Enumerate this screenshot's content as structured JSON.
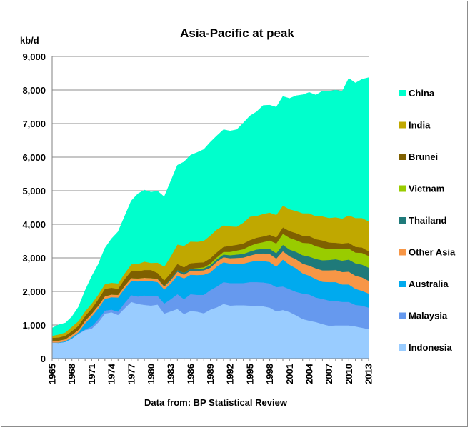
{
  "chart_data": {
    "type": "area",
    "stacked": true,
    "title": "Asia-Pacific at peak",
    "ylabel": "kb/d",
    "xlabel": "",
    "source_note": "Data from: BP Statistical Review",
    "ylim": [
      0,
      9000
    ],
    "yticks": [
      "0",
      "1,000",
      "2,000",
      "3,000",
      "4,000",
      "5,000",
      "6,000",
      "7,000",
      "8,000",
      "9,000"
    ],
    "xtick_labels": [
      "1965",
      "1968",
      "1971",
      "1974",
      "1977",
      "1980",
      "1983",
      "1986",
      "1989",
      "1992",
      "1995",
      "1998",
      "2001",
      "2004",
      "2007",
      "2010",
      "2013"
    ],
    "grid": "horizontal",
    "legend_position": "right",
    "x": [
      1965,
      1966,
      1967,
      1968,
      1969,
      1970,
      1971,
      1972,
      1973,
      1974,
      1975,
      1976,
      1977,
      1978,
      1979,
      1980,
      1981,
      1982,
      1983,
      1984,
      1985,
      1986,
      1987,
      1988,
      1989,
      1990,
      1991,
      1992,
      1993,
      1994,
      1995,
      1996,
      1997,
      1998,
      1999,
      2000,
      2001,
      2002,
      2003,
      2004,
      2005,
      2006,
      2007,
      2008,
      2009,
      2010,
      2011,
      2012,
      2013
    ],
    "series": [
      {
        "name": "Indonesia",
        "color": "#99ccff",
        "values": [
          480,
          470,
          500,
          600,
          740,
          850,
          890,
          1080,
          1340,
          1380,
          1300,
          1500,
          1690,
          1630,
          1600,
          1580,
          1610,
          1340,
          1410,
          1480,
          1330,
          1420,
          1400,
          1350,
          1460,
          1530,
          1630,
          1580,
          1590,
          1590,
          1580,
          1580,
          1560,
          1520,
          1410,
          1450,
          1390,
          1290,
          1180,
          1130,
          1090,
          1030,
          980,
          990,
          990,
          990,
          960,
          920,
          880
        ]
      },
      {
        "name": "Malaysia",
        "color": "#6699ee",
        "values": [
          0,
          0,
          0,
          0,
          10,
          20,
          70,
          90,
          90,
          80,
          100,
          160,
          200,
          220,
          280,
          280,
          260,
          300,
          360,
          440,
          440,
          500,
          500,
          550,
          580,
          620,
          650,
          670,
          660,
          660,
          700,
          700,
          710,
          720,
          720,
          700,
          680,
          700,
          760,
          780,
          730,
          750,
          750,
          730,
          700,
          700,
          640,
          660,
          640
        ]
      },
      {
        "name": "Australia",
        "color": "#00aaee",
        "values": [
          0,
          10,
          20,
          40,
          40,
          180,
          300,
          330,
          350,
          370,
          420,
          430,
          420,
          450,
          440,
          450,
          410,
          420,
          470,
          560,
          620,
          580,
          590,
          600,
          530,
          600,
          590,
          580,
          580,
          580,
          600,
          640,
          640,
          640,
          610,
          800,
          730,
          700,
          600,
          560,
          550,
          510,
          550,
          560,
          520,
          520,
          480,
          440,
          420
        ]
      },
      {
        "name": "Other Asia",
        "color": "#f79646",
        "values": [
          60,
          60,
          60,
          70,
          70,
          80,
          80,
          80,
          80,
          80,
          80,
          80,
          90,
          90,
          90,
          90,
          90,
          90,
          100,
          110,
          110,
          120,
          130,
          130,
          140,
          140,
          150,
          160,
          170,
          180,
          190,
          200,
          220,
          240,
          240,
          250,
          250,
          270,
          290,
          300,
          320,
          340,
          350,
          360,
          370,
          380,
          390,
          400,
          380
        ]
      },
      {
        "name": "Thailand",
        "color": "#1f7a7a",
        "values": [
          0,
          0,
          0,
          0,
          0,
          0,
          0,
          0,
          0,
          0,
          0,
          0,
          0,
          0,
          0,
          0,
          10,
          20,
          40,
          50,
          60,
          60,
          60,
          60,
          70,
          70,
          80,
          90,
          100,
          110,
          120,
          130,
          140,
          150,
          160,
          190,
          200,
          220,
          250,
          270,
          280,
          300,
          310,
          320,
          340,
          360,
          370,
          380,
          390
        ]
      },
      {
        "name": "Vietnam",
        "color": "#99cc00",
        "values": [
          0,
          0,
          0,
          0,
          0,
          0,
          0,
          0,
          0,
          0,
          0,
          0,
          0,
          0,
          0,
          0,
          0,
          0,
          0,
          0,
          0,
          0,
          20,
          30,
          50,
          60,
          80,
          100,
          120,
          140,
          170,
          180,
          200,
          250,
          290,
          330,
          350,
          350,
          370,
          400,
          380,
          370,
          320,
          310,
          340,
          330,
          320,
          350,
          350
        ]
      },
      {
        "name": "Brunei",
        "color": "#7f6000",
        "values": [
          80,
          90,
          100,
          110,
          120,
          140,
          150,
          190,
          220,
          200,
          180,
          200,
          210,
          210,
          230,
          240,
          170,
          160,
          170,
          180,
          160,
          160,
          160,
          150,
          160,
          150,
          150,
          180,
          170,
          170,
          170,
          170,
          170,
          170,
          180,
          190,
          200,
          210,
          210,
          210,
          210,
          220,
          200,
          180,
          170,
          170,
          170,
          160,
          140
        ]
      },
      {
        "name": "India",
        "color": "#c0a800",
        "values": [
          60,
          90,
          100,
          130,
          140,
          140,
          150,
          140,
          140,
          150,
          160,
          170,
          200,
          220,
          250,
          210,
          310,
          410,
          500,
          580,
          640,
          650,
          620,
          640,
          680,
          680,
          640,
          580,
          540,
          620,
          700,
          650,
          670,
          660,
          670,
          650,
          650,
          660,
          670,
          680,
          680,
          720,
          730,
          760,
          740,
          820,
          860,
          880,
          890
        ]
      },
      {
        "name": "China",
        "color": "#00ffcc",
        "values": [
          230,
          290,
          280,
          300,
          420,
          620,
          810,
          900,
          1070,
          1310,
          1540,
          1700,
          1890,
          2090,
          2130,
          2110,
          2130,
          2080,
          2240,
          2360,
          2500,
          2570,
          2660,
          2720,
          2780,
          2790,
          2850,
          2840,
          2890,
          2970,
          3000,
          3100,
          3230,
          3200,
          3210,
          3250,
          3300,
          3430,
          3530,
          3600,
          3610,
          3730,
          3770,
          3790,
          3790,
          4080,
          4020,
          4130,
          4280
        ]
      }
    ]
  }
}
